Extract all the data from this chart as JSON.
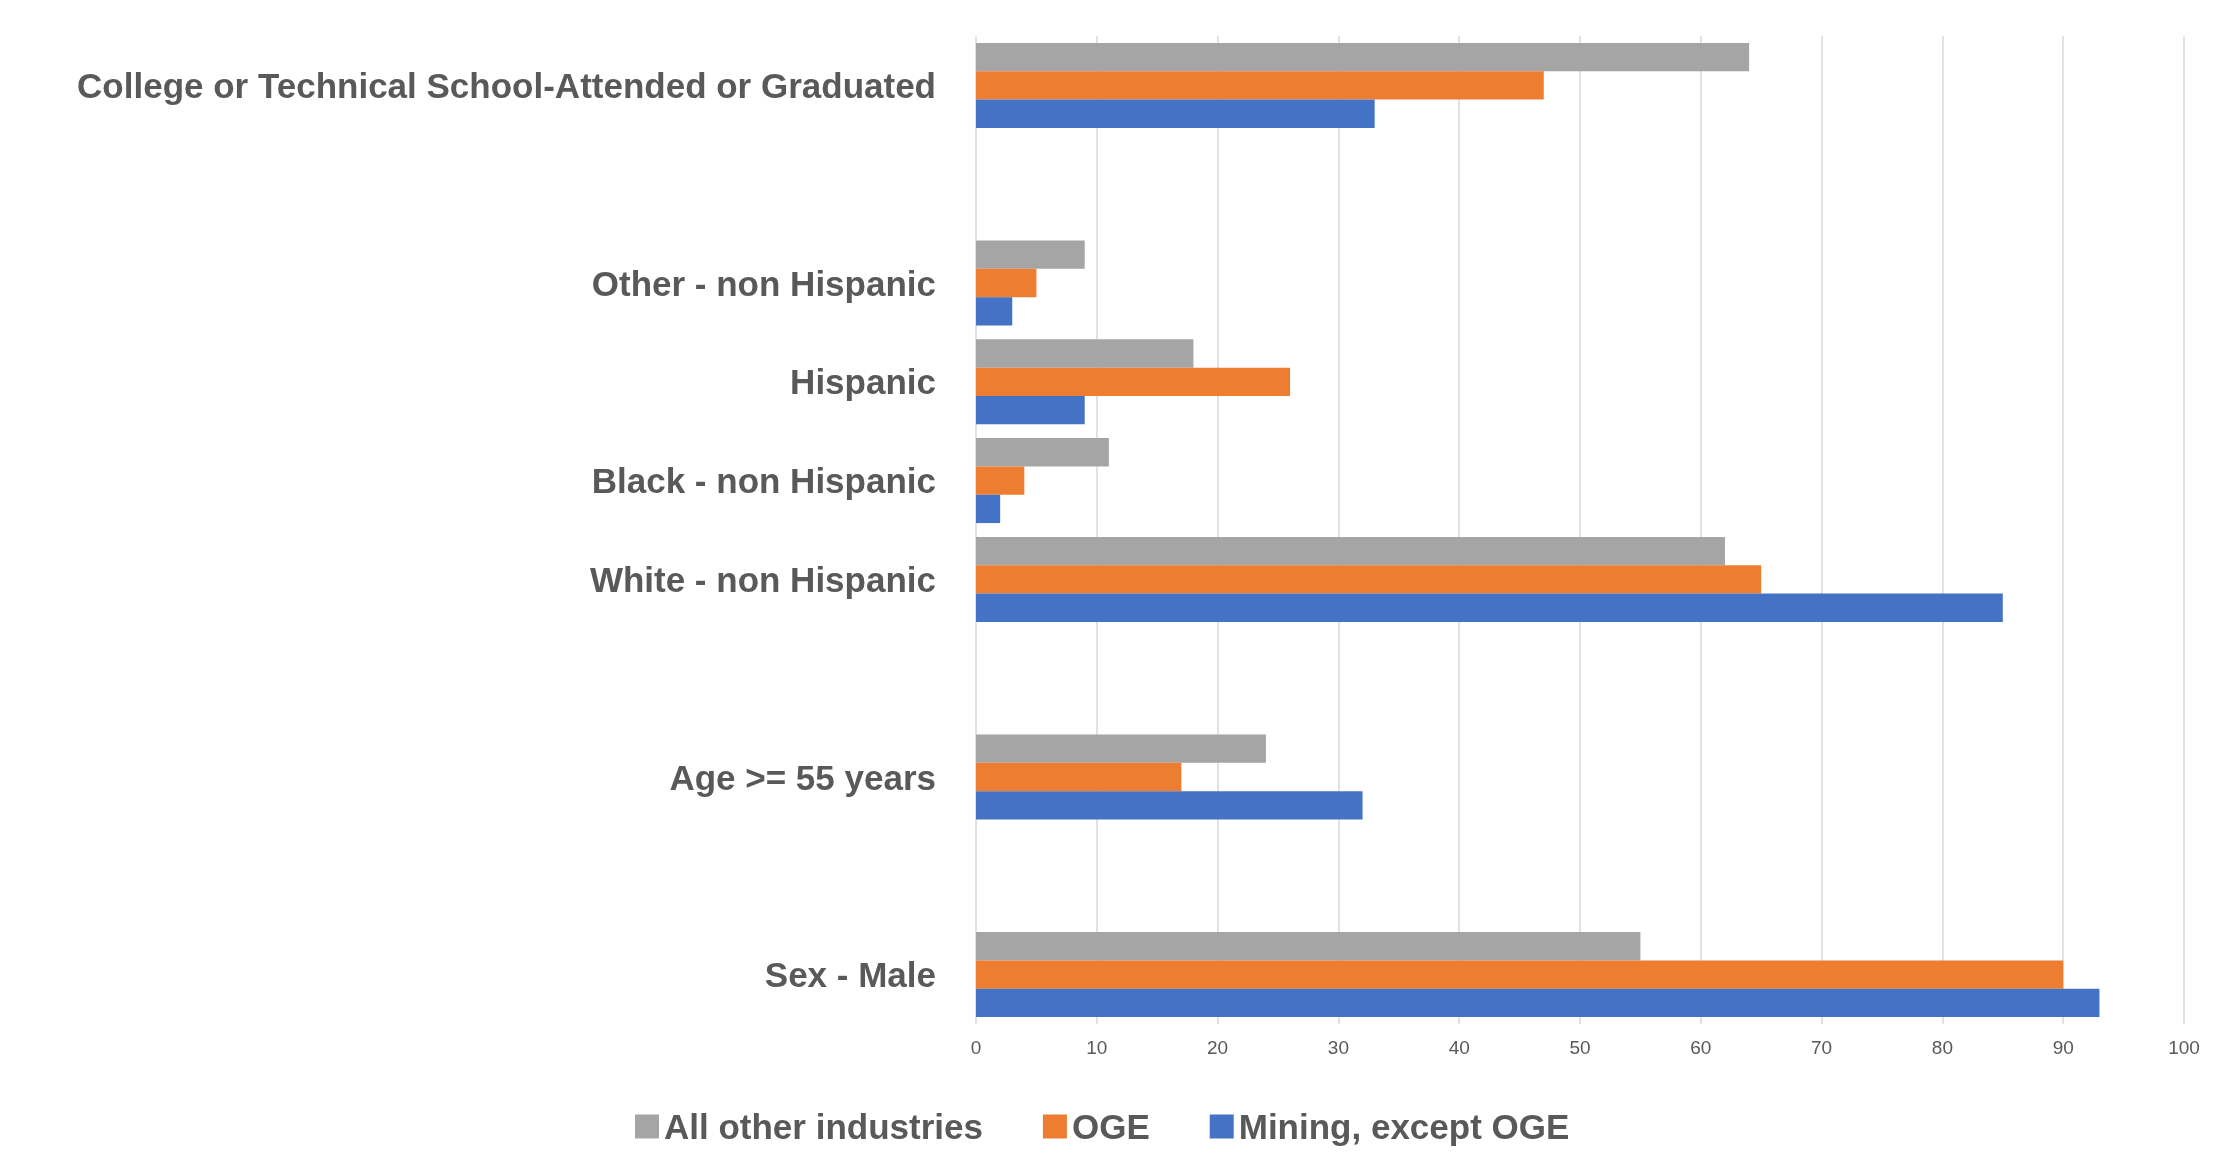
{
  "chart_data": {
    "type": "bar",
    "orientation": "horizontal",
    "categories": [
      "College or Technical School-Attended or Graduated",
      null,
      "Other - non Hispanic",
      "Hispanic",
      "Black - non Hispanic",
      "White - non Hispanic",
      null,
      "Age >= 55 years",
      null,
      "Sex - Male"
    ],
    "series": [
      {
        "name": "All other industries",
        "color": "#a5a5a5",
        "values": [
          64,
          null,
          9,
          18,
          11,
          62,
          null,
          24,
          null,
          55
        ]
      },
      {
        "name": "OGE",
        "color": "#ed7d31",
        "values": [
          47,
          null,
          5,
          26,
          4,
          65,
          null,
          17,
          null,
          90
        ]
      },
      {
        "name": "Mining, except OGE",
        "color": "#4472c4",
        "values": [
          33,
          null,
          3,
          9,
          2,
          85,
          null,
          32,
          null,
          93
        ]
      }
    ],
    "xlim": [
      0,
      100
    ],
    "xticks": [
      0,
      10,
      20,
      30,
      40,
      50,
      60,
      70,
      80,
      90,
      100
    ],
    "grid": "x",
    "legend": "bottom"
  }
}
